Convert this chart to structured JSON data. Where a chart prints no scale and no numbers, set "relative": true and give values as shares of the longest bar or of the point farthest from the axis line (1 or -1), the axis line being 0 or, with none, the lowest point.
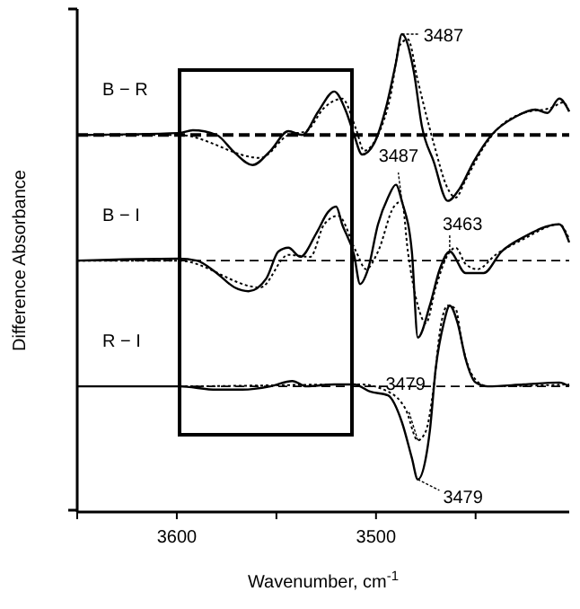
{
  "chart_data": {
    "type": "line",
    "relative": true,
    "xlabel": "Wavenumber, cm$^{-1}$",
    "ylabel": "Difference Absorbance",
    "xlim": [
      3650,
      3403
    ],
    "xticks": [
      {
        "value": 3650,
        "label": null
      },
      3600,
      {
        "value": 3550,
        "label": null
      },
      3500,
      {
        "value": 3450,
        "label": null
      }
    ],
    "tick_labels": "x",
    "grid": false,
    "marker": "none",
    "series": [
      {
        "name": "B − R",
        "color": "#000000",
        "line_style": "solid",
        "x": [
          3650,
          3599,
          3592,
          3580,
          3571,
          3562,
          3553,
          3544,
          3537,
          3529,
          3521,
          3515,
          3511,
          3507,
          3501,
          3495,
          3490,
          3487,
          3481,
          3477,
          3471,
          3464,
          3458,
          3451,
          3442,
          3430,
          3420,
          3414,
          3408,
          3403
        ],
        "values": [
          0.789,
          0.793,
          0.799,
          0.789,
          0.752,
          0.726,
          0.756,
          0.797,
          0.789,
          0.838,
          0.88,
          0.838,
          0.789,
          0.748,
          0.771,
          0.846,
          0.94,
          1.0,
          0.921,
          0.808,
          0.733,
          0.651,
          0.677,
          0.733,
          0.789,
          0.827,
          0.842,
          0.835,
          0.865,
          0.838
        ]
      },
      {
        "color": "#000000",
        "line_style": "dotted",
        "x": [
          3650,
          3599,
          3558,
          3544,
          3535,
          3526,
          3517,
          3510,
          3506,
          3499,
          3493,
          3488,
          3484,
          3479,
          3471,
          3464,
          3460,
          3455,
          3446,
          3440,
          3426,
          3412,
          3406,
          3403
        ],
        "values": [
          0.789,
          0.789,
          0.741,
          0.789,
          0.797,
          0.846,
          0.865,
          0.801,
          0.756,
          0.789,
          0.865,
          0.977,
          0.989,
          0.902,
          0.771,
          0.677,
          0.658,
          0.695,
          0.763,
          0.797,
          0.835,
          0.846,
          0.857,
          0.838
        ]
      },
      {
        "name": "B − I",
        "color": "#000000",
        "line_style": "solid",
        "x": [
          3650,
          3599,
          3590,
          3580,
          3571,
          3564,
          3555,
          3549,
          3544,
          3538,
          3530,
          3524,
          3520,
          3517,
          3511,
          3508,
          3504,
          3499,
          3494,
          3490,
          3487,
          3482,
          3479,
          3473,
          3468,
          3463,
          3455,
          3446,
          3437,
          3426,
          3408,
          3403
        ],
        "values": [
          0.526,
          0.53,
          0.526,
          0.5,
          0.47,
          0.462,
          0.489,
          0.545,
          0.553,
          0.534,
          0.583,
          0.628,
          0.639,
          0.602,
          0.538,
          0.477,
          0.508,
          0.602,
          0.658,
          0.685,
          0.65,
          0.545,
          0.365,
          0.432,
          0.508,
          0.545,
          0.5,
          0.5,
          0.545,
          0.575,
          0.602,
          0.564
        ]
      },
      {
        "color": "#000000",
        "line_style": "dotted",
        "x": [
          3650,
          3599,
          3558,
          3544,
          3533,
          3526,
          3519,
          3510,
          3505,
          3499,
          3491,
          3487,
          3484,
          3479,
          3475,
          3470,
          3464,
          3460,
          3455,
          3449,
          3440,
          3426,
          3408,
          3403
        ],
        "values": [
          0.526,
          0.526,
          0.47,
          0.538,
          0.534,
          0.602,
          0.62,
          0.545,
          0.508,
          0.545,
          0.639,
          0.65,
          0.545,
          0.432,
          0.395,
          0.47,
          0.538,
          0.553,
          0.519,
          0.508,
          0.538,
          0.571,
          0.602,
          0.571
        ]
      },
      {
        "name": "R − I",
        "color": "#000000",
        "line_style": "solid",
        "x": [
          3650,
          3599,
          3580,
          3567,
          3553,
          3542,
          3535,
          3521,
          3511,
          3503,
          3494,
          3487,
          3482,
          3479,
          3475,
          3473,
          3470,
          3466,
          3463,
          3459,
          3455,
          3450,
          3444,
          3426,
          3408,
          3403
        ],
        "values": [
          0.263,
          0.263,
          0.256,
          0.256,
          0.263,
          0.274,
          0.263,
          0.267,
          0.267,
          0.252,
          0.244,
          0.188,
          0.113,
          0.068,
          0.113,
          0.169,
          0.301,
          0.395,
          0.432,
          0.395,
          0.32,
          0.271,
          0.263,
          0.267,
          0.271,
          0.263
        ]
      },
      {
        "color": "#000000",
        "line_style": "dotted",
        "x": [
          3650,
          3599,
          3508,
          3494,
          3485,
          3479,
          3475,
          3471,
          3468,
          3464,
          3460,
          3457,
          3451,
          3444,
          3403
        ],
        "values": [
          0.263,
          0.263,
          0.267,
          0.252,
          0.214,
          0.15,
          0.169,
          0.263,
          0.376,
          0.432,
          0.425,
          0.357,
          0.282,
          0.263,
          0.267
        ]
      }
    ],
    "ref_lines": [
      {
        "axis": "y",
        "value": 0.789,
        "line_style": "dashed",
        "color": "#000000"
      },
      {
        "axis": "y",
        "value": 0.526,
        "line_style": "dashed",
        "color": "#000000"
      },
      {
        "axis": "y",
        "value": 0.263,
        "line_style": "dashed",
        "color": "#000000"
      }
    ],
    "annotations": [
      {
        "text": "3487",
        "x": 3487,
        "y": 1.0
      },
      {
        "text": "3487",
        "x": 3487,
        "y": 0.65
      },
      {
        "text": "3463",
        "x": 3463,
        "y": 0.545
      },
      {
        "text": "3479",
        "x": 3479,
        "y": 0.15
      },
      {
        "text": "3479",
        "x": 3479,
        "y": 0.068
      }
    ]
  }
}
